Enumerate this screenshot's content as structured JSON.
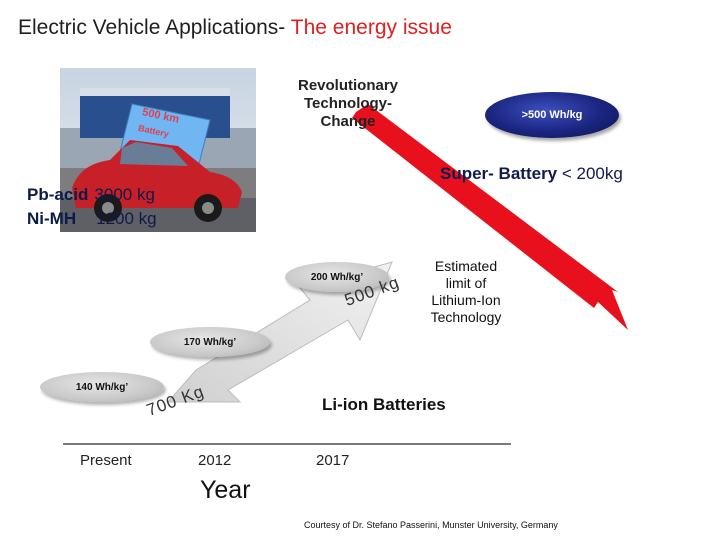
{
  "title": {
    "main": "Electric Vehicle Applications-",
    "highlight": "The energy issue",
    "highlight_color": "#e02020"
  },
  "photo": {
    "alt_icon": "overloaded-car-photo",
    "sign_text_line1": "500 km",
    "sign_text_line2": "Battery"
  },
  "conventional": {
    "pb_label": "Pb-acid",
    "pb_value": "3000 kg",
    "ni_label": "Ni-MH",
    "ni_value": "1200 kg"
  },
  "revolution": {
    "text_line1": "Revolutionary",
    "text_line2": "Technology-",
    "text_line3": "Change"
  },
  "milestones": {
    "m500": ">500 Wh/kg",
    "m200": "200 Wh/kg’",
    "m170": "170 Wh/kg’",
    "m140": "140 Wh/kg’"
  },
  "super_battery": {
    "bold": "Super- Battery",
    "rest": " < 200kg"
  },
  "estimated": {
    "line1": "Estimated",
    "line2": "limit of",
    "line3": "Lithium-Ion",
    "line4": "Technology"
  },
  "li_ion": "Li-ion Batteries",
  "weights": {
    "w500": "500 kg",
    "w700": "700 Kg"
  },
  "timeline": {
    "ticks": [
      "Present",
      "2012",
      "2017"
    ],
    "axis_label": "Year"
  },
  "courtesy": "Courtesy of Dr.  Stefano Passerini, Munster University, Germany",
  "colors": {
    "red_arrow": "#e8101c",
    "navy_pill": "#1a2580",
    "gray_pill": "#c9c9c9"
  }
}
